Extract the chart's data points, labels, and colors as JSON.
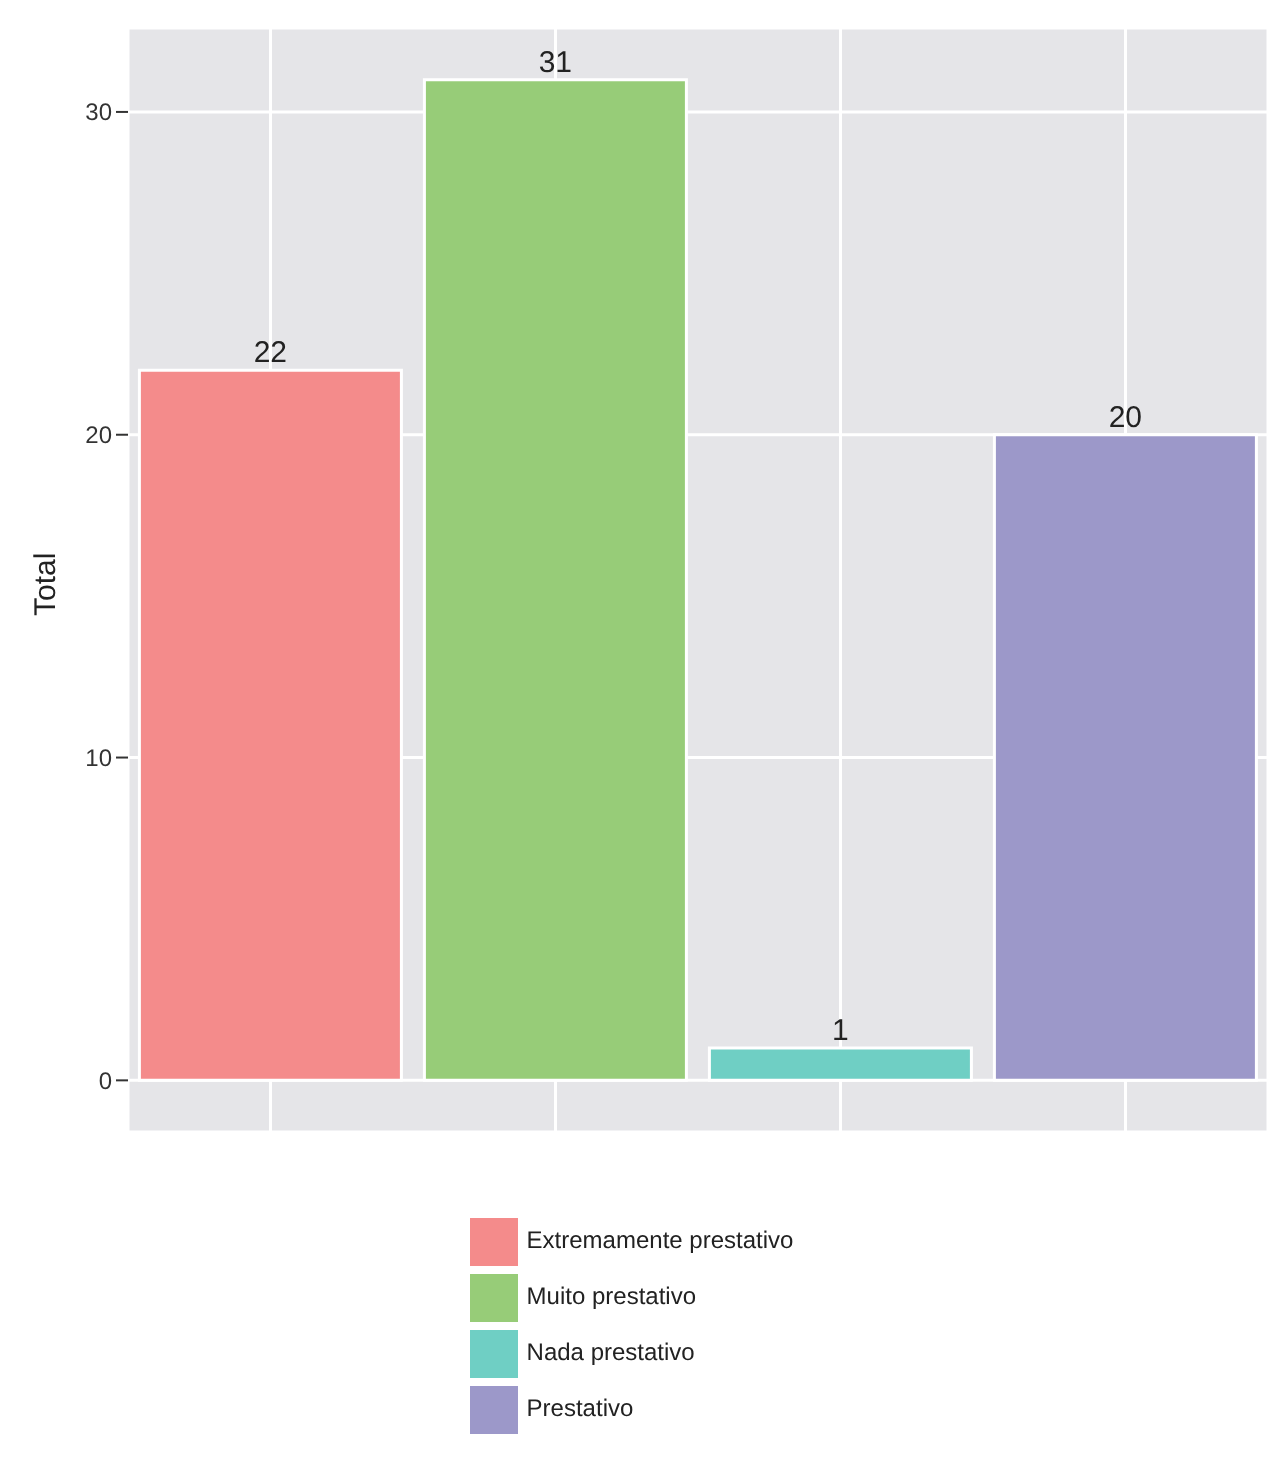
{
  "chart_data": {
    "type": "bar",
    "ylabel": "Total",
    "categories": [
      null,
      null,
      null,
      null
    ],
    "stacked": true,
    "series": [
      {
        "name": "Extremamente prestativo",
        "color": "#f48b8b",
        "values": [
          22,
          null,
          null,
          null
        ]
      },
      {
        "name": "Muito prestativo",
        "color": "#97cc78",
        "values": [
          null,
          31,
          null,
          null
        ]
      },
      {
        "name": "Nada prestativo",
        "color": "#6fcfc4",
        "values": [
          null,
          null,
          1,
          null
        ]
      },
      {
        "name": "Prestativo",
        "color": "#9c98c9",
        "values": [
          null,
          null,
          null,
          20
        ]
      }
    ],
    "ylim": [
      -1.6,
      32.6
    ],
    "yticks": [
      0,
      10,
      20,
      30
    ],
    "grid": true,
    "legend": "bottom",
    "data_labels": true
  }
}
